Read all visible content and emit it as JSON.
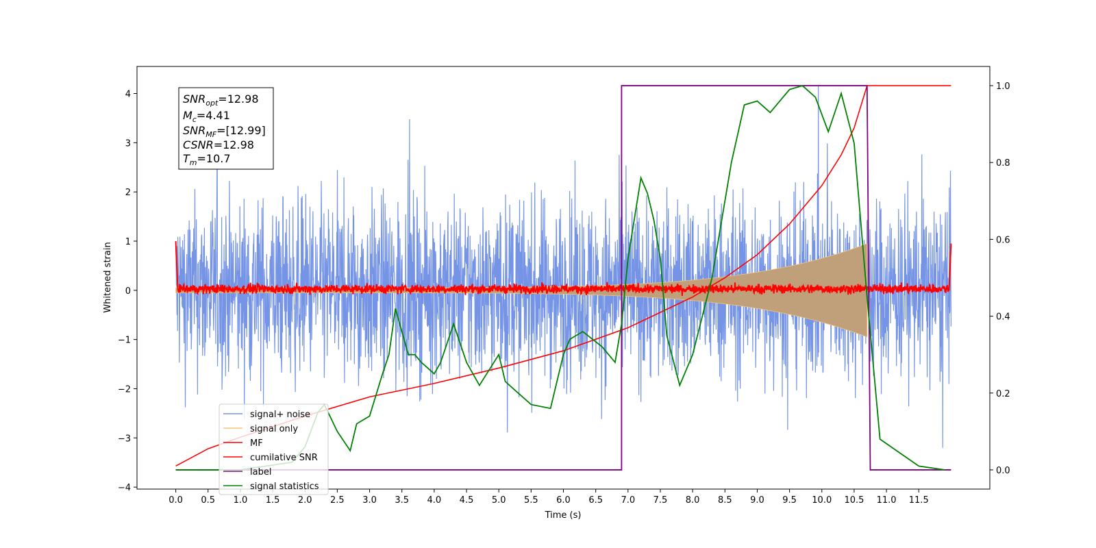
{
  "chart_data": {
    "type": "line",
    "xlabel": "Time (s)",
    "ylabel": "Whitened strain",
    "xlim": [
      -0.6,
      12.6
    ],
    "ylim": [
      -4.04,
      4.55
    ],
    "y2lim": [
      -0.05,
      1.05
    ],
    "x_ticks": [
      "0.0",
      "0.5",
      "1.0",
      "1.5",
      "2.0",
      "2.5",
      "3.0",
      "3.5",
      "4.0",
      "4.5",
      "5.0",
      "5.5",
      "6.0",
      "6.5",
      "7.0",
      "7.5",
      "8.0",
      "8.5",
      "9.0",
      "9.5",
      "10.0",
      "10.5",
      "11.0",
      "11.5"
    ],
    "y_ticks": [
      "−4",
      "−3",
      "−2",
      "−1",
      "0",
      "1",
      "2",
      "3",
      "4"
    ],
    "y2_ticks": [
      "0.0",
      "0.2",
      "0.4",
      "0.6",
      "0.8",
      "1.0"
    ],
    "grid": false,
    "legend_position": "lower-left",
    "colors": {
      "noise": "#7594e6",
      "signal": "#f5c27a",
      "signal_fill": "#bfa07a",
      "mf": "#ff0000",
      "cum_snr": "#ff0000",
      "label": "#800080",
      "stats": "#008000"
    },
    "series": [
      {
        "name": "signal+ noise",
        "axis": "left",
        "style": "noise band, approx. between -2.5 and 2.5 with spikes to 4.2 and -3.6",
        "x_range": [
          0.0,
          12.0
        ]
      },
      {
        "name": "signal only",
        "axis": "left",
        "style": "chirp envelope growing from 0.05 to 0.95 amplitude",
        "x_range": [
          0.0,
          10.7
        ]
      },
      {
        "name": "MF",
        "axis": "left",
        "style": "noisy around 0, amplitude ~0.1, spike to 1.0 at edges",
        "x_range": [
          0.0,
          12.0
        ]
      },
      {
        "name": "cumilative SNR",
        "axis": "right",
        "x": [
          0.0,
          0.5,
          1.0,
          2.0,
          3.0,
          4.0,
          5.0,
          6.0,
          7.0,
          7.5,
          8.0,
          8.5,
          9.0,
          9.5,
          10.0,
          10.3,
          10.5,
          10.7,
          12.0
        ],
        "y": [
          0.01,
          0.055,
          0.085,
          0.14,
          0.19,
          0.225,
          0.265,
          0.31,
          0.37,
          0.41,
          0.45,
          0.5,
          0.56,
          0.64,
          0.74,
          0.82,
          0.89,
          1.0,
          1.0
        ]
      },
      {
        "name": "label",
        "axis": "right",
        "x": [
          0.0,
          6.9,
          6.9,
          10.7,
          10.75,
          12.0
        ],
        "y": [
          0.0,
          0.0,
          1.0,
          1.0,
          0.0,
          0.0
        ]
      },
      {
        "name": "signal statistics",
        "axis": "right",
        "x": [
          0.0,
          1.0,
          1.8,
          2.0,
          2.2,
          2.3,
          2.5,
          2.7,
          2.8,
          3.0,
          3.2,
          3.3,
          3.4,
          3.5,
          3.6,
          3.7,
          3.8,
          4.0,
          4.1,
          4.3,
          4.5,
          4.7,
          5.0,
          5.1,
          5.3,
          5.5,
          5.8,
          6.0,
          6.1,
          6.3,
          6.6,
          6.8,
          6.9,
          7.0,
          7.2,
          7.3,
          7.4,
          7.5,
          7.6,
          7.8,
          8.0,
          8.3,
          8.6,
          8.8,
          9.0,
          9.2,
          9.5,
          9.7,
          9.9,
          10.1,
          10.3,
          10.5,
          10.7,
          10.9,
          11.5,
          11.9
        ],
        "y": [
          0.0,
          0.0,
          0.02,
          0.06,
          0.15,
          0.17,
          0.1,
          0.05,
          0.12,
          0.14,
          0.25,
          0.3,
          0.42,
          0.36,
          0.3,
          0.3,
          0.28,
          0.25,
          0.28,
          0.38,
          0.28,
          0.22,
          0.3,
          0.23,
          0.2,
          0.17,
          0.16,
          0.3,
          0.34,
          0.36,
          0.32,
          0.28,
          0.38,
          0.55,
          0.76,
          0.72,
          0.65,
          0.55,
          0.35,
          0.22,
          0.3,
          0.5,
          0.8,
          0.95,
          0.96,
          0.93,
          0.99,
          1.0,
          0.97,
          0.88,
          0.98,
          0.85,
          0.45,
          0.08,
          0.01,
          0.0
        ]
      }
    ],
    "info_box": [
      "SNR_opt=12.98",
      "M_c=4.41",
      "SNR_MF=[12.99]",
      "CSNR=12.98",
      "T_m=10.7"
    ]
  },
  "info_box": {
    "snr_opt": {
      "main": "SNR",
      "sub": "opt",
      "value": "=12.98"
    },
    "mc": {
      "main": "M",
      "sub": "c",
      "value": "=4.41"
    },
    "snr_mf": {
      "main": "SNR",
      "sub": "MF",
      "value": "=[12.99]"
    },
    "csnr": {
      "main": "CSNR",
      "sub": "",
      "value": "=12.98"
    },
    "tm": {
      "main": "T",
      "sub": "m",
      "value": "=10.7"
    }
  },
  "legend": [
    {
      "label": "signal+ noise",
      "color": "#7594e6"
    },
    {
      "label": "signal only",
      "color": "#f5c27a"
    },
    {
      "label": "MF",
      "color": "#ff0000"
    },
    {
      "label": "cumilative SNR",
      "color": "#ff0000"
    },
    {
      "label": "label",
      "color": "#800080"
    },
    {
      "label": "signal statistics",
      "color": "#008000"
    }
  ]
}
